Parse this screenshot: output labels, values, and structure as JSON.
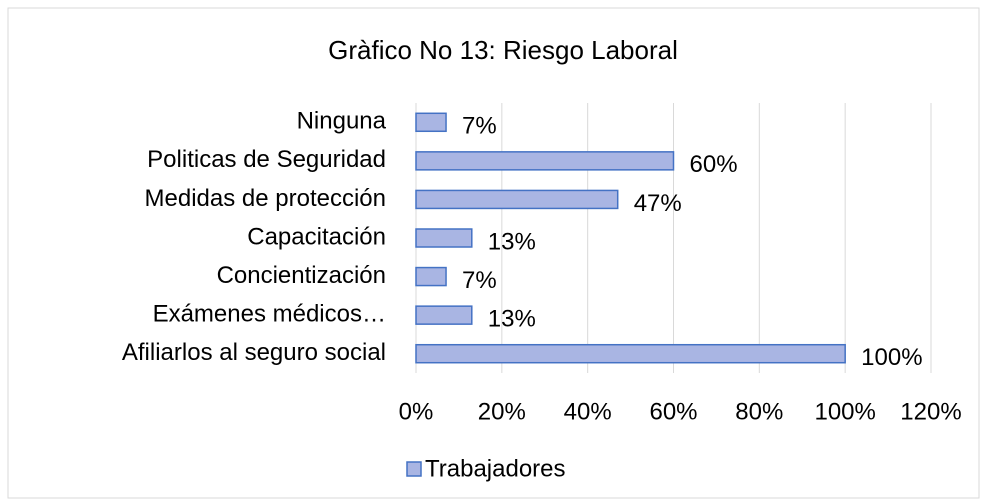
{
  "chart_data": {
    "type": "bar",
    "orientation": "horizontal",
    "title": "Gràfico No 13: Riesgo Laboral",
    "categories": [
      "Ninguna",
      "Politicas de Seguridad",
      "Medidas de protección",
      "Capacitación",
      "Concientización",
      "Exámenes médicos…",
      "Afiliarlos al seguro social"
    ],
    "series": [
      {
        "name": "Trabajadores",
        "color": "#a9b5e3",
        "values": [
          7,
          60,
          47,
          13,
          7,
          13,
          100
        ],
        "value_labels": [
          "7%",
          "60%",
          "47%",
          "13%",
          "7%",
          "13%",
          "100%"
        ]
      }
    ],
    "xlim": [
      0,
      120
    ],
    "xticks": [
      {
        "value": 0,
        "label": "0%"
      },
      {
        "value": 20,
        "label": "20%"
      },
      {
        "value": 40,
        "label": "40%"
      },
      {
        "value": 60,
        "label": "60%"
      },
      {
        "value": 80,
        "label": "80%"
      },
      {
        "value": 100,
        "label": "100%"
      },
      {
        "value": 120,
        "label": "120%"
      }
    ],
    "grid": true,
    "legend": "bottom"
  }
}
